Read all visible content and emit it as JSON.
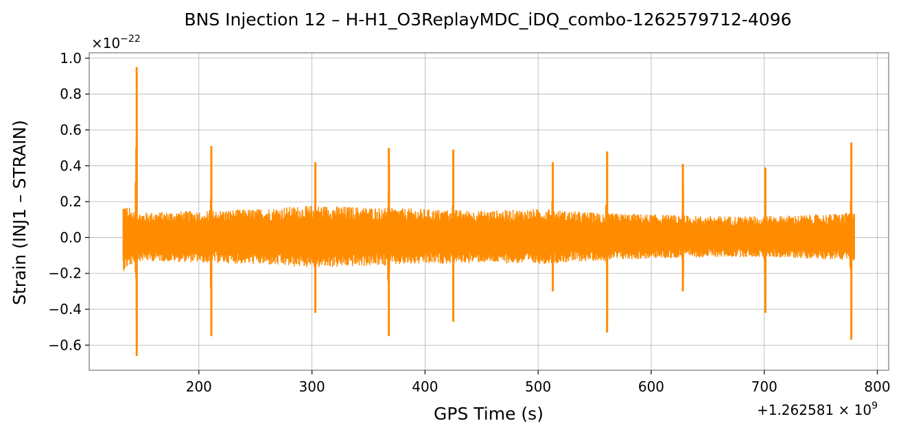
{
  "chart_data": {
    "type": "line",
    "title": "BNS Injection 12 – H-H1_O3ReplayMDC_iDQ_combo-1262579712-4096",
    "xlabel": "GPS Time (s)",
    "ylabel": "Strain (INJ1 – STRAIN)",
    "x_offset_label": "+1.262581 × 10",
    "x_offset_exponent": "9",
    "y_scale_label": "×10",
    "y_scale_exponent": "−22",
    "xlim": [
      103,
      810
    ],
    "ylim": [
      -0.74,
      1.03
    ],
    "x_ticks": [
      200,
      300,
      400,
      500,
      600,
      700,
      800
    ],
    "x_tick_labels": [
      "200",
      "300",
      "400",
      "500",
      "600",
      "700",
      "800"
    ],
    "y_ticks": [
      -0.6,
      -0.4,
      -0.2,
      0.0,
      0.2,
      0.4,
      0.6,
      0.8,
      1.0
    ],
    "y_tick_labels": [
      "−0.6",
      "−0.4",
      "−0.2",
      "0.0",
      "0.2",
      "0.4",
      "0.6",
      "0.8",
      "1.0"
    ],
    "grid": true,
    "series": [
      {
        "color": "#ff8c00",
        "x_range": [
          133,
          780
        ],
        "noise_band": [
          {
            "x": 133,
            "lo": -0.19,
            "hi": 0.19
          },
          {
            "x": 145,
            "lo": -0.13,
            "hi": 0.14
          },
          {
            "x": 200,
            "lo": -0.14,
            "hi": 0.15
          },
          {
            "x": 250,
            "lo": -0.15,
            "hi": 0.16
          },
          {
            "x": 300,
            "lo": -0.17,
            "hi": 0.18
          },
          {
            "x": 350,
            "lo": -0.16,
            "hi": 0.17
          },
          {
            "x": 400,
            "lo": -0.15,
            "hi": 0.16
          },
          {
            "x": 450,
            "lo": -0.14,
            "hi": 0.15
          },
          {
            "x": 500,
            "lo": -0.15,
            "hi": 0.16
          },
          {
            "x": 550,
            "lo": -0.13,
            "hi": 0.14
          },
          {
            "x": 600,
            "lo": -0.12,
            "hi": 0.13
          },
          {
            "x": 650,
            "lo": -0.11,
            "hi": 0.12
          },
          {
            "x": 700,
            "lo": -0.11,
            "hi": 0.12
          },
          {
            "x": 750,
            "lo": -0.12,
            "hi": 0.13
          },
          {
            "x": 780,
            "lo": -0.13,
            "hi": 0.14
          }
        ],
        "bursts": [
          {
            "x": 145,
            "max": 0.95,
            "min": -0.66
          },
          {
            "x": 211,
            "max": 0.51,
            "min": -0.55
          },
          {
            "x": 303,
            "max": 0.42,
            "min": -0.42
          },
          {
            "x": 368,
            "max": 0.5,
            "min": -0.55
          },
          {
            "x": 425,
            "max": 0.49,
            "min": -0.47
          },
          {
            "x": 513,
            "max": 0.42,
            "min": -0.3
          },
          {
            "x": 561,
            "max": 0.48,
            "min": -0.53
          },
          {
            "x": 628,
            "max": 0.41,
            "min": -0.3
          },
          {
            "x": 701,
            "max": 0.39,
            "min": -0.42
          },
          {
            "x": 777,
            "max": 0.53,
            "min": -0.57
          }
        ]
      }
    ]
  }
}
